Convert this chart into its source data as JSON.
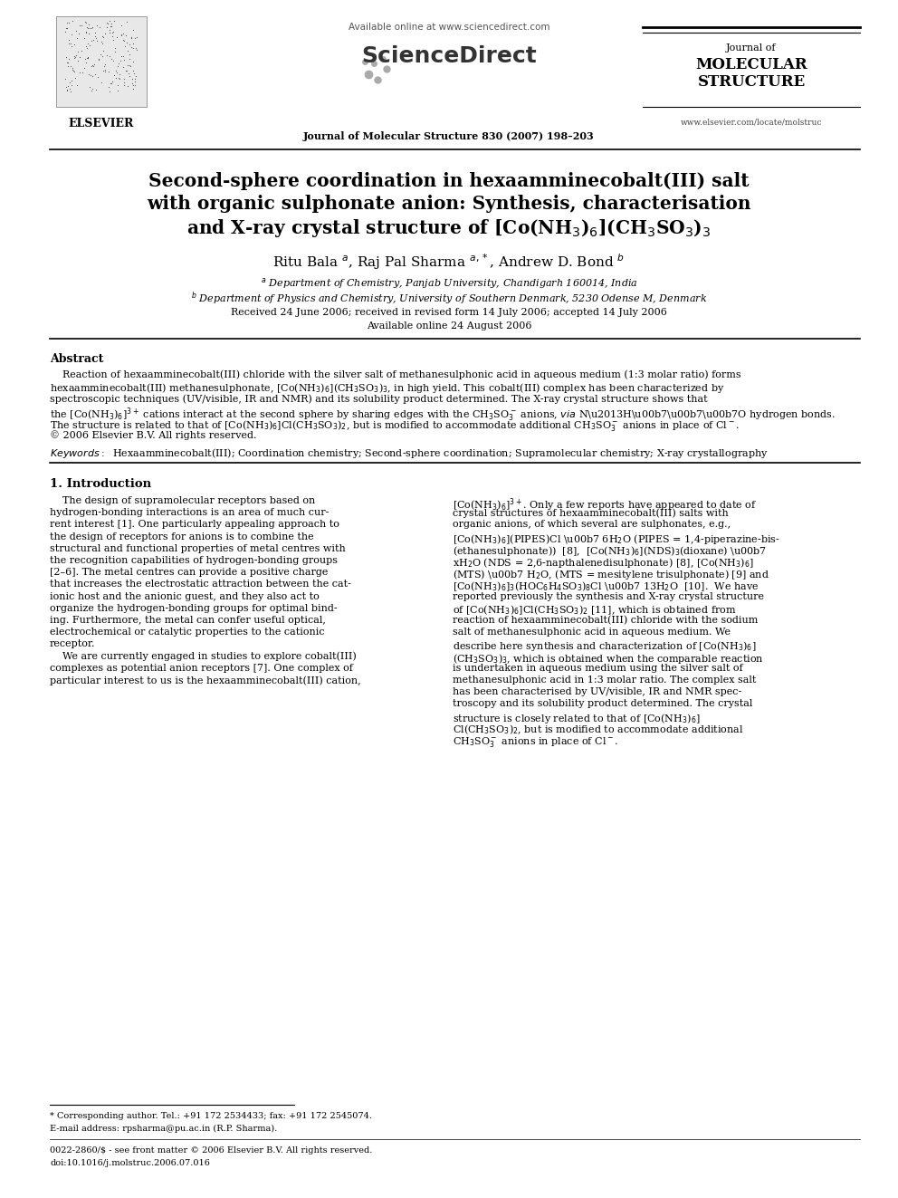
{
  "bg_color": "#ffffff",
  "page_width": 9.92,
  "page_height": 13.23,
  "dpi": 100,
  "header": {
    "elsevier_text": "ELSEVIER",
    "available_online": "Available online at www.sciencedirect.com",
    "sciencedirect": "ScienceDirect",
    "journal_name_top": "Journal of",
    "journal_name1": "MOLECULAR",
    "journal_name2": "STRUCTURE",
    "journal_ref": "Journal of Molecular Structure 830 (2007) 198–203",
    "website": "www.elsevier.com/locate/molstruc"
  },
  "title_line1": "Second-sphere coordination in hexaamminecobalt(III) salt",
  "title_line2": "with organic sulphonate anion: Synthesis, characterisation",
  "title_line3": "and X-ray crystal structure of [Co(NH$_3$)$_6$](CH$_3$SO$_3$)$_3$",
  "authors": "Ritu Bala $^a$, Raj Pal Sharma $^{a,*}$, Andrew D. Bond $^b$",
  "affil_a": "$^a$ Department of Chemistry, Panjab University, Chandigarh 160014, India",
  "affil_b": "$^b$ Department of Physics and Chemistry, University of Southern Denmark, 5230 Odense M, Denmark",
  "received": "Received 24 June 2006; received in revised form 14 July 2006; accepted 14 July 2006",
  "available": "Available online 24 August 2006",
  "abstract_title": "Abstract",
  "keywords_label": "Keywords:",
  "section1_title": "1. Introduction",
  "footnote_star": "* Corresponding author. Tel.: +91 172 2534433; fax: +91 172 2545074.",
  "footnote_email": "E-mail address: rpsharma@pu.ac.in (R.P. Sharma).",
  "footnote_issn": "0022-2860/$ - see front matter © 2006 Elsevier B.V. All rights reserved.",
  "footnote_doi": "doi:10.1016/j.molstruc.2006.07.016"
}
